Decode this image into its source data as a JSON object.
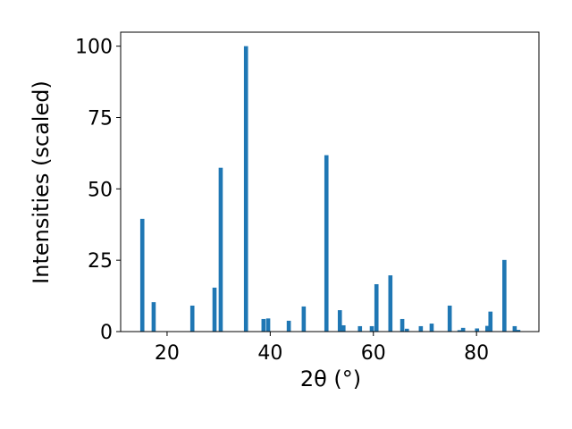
{
  "chart_data": {
    "type": "bar",
    "x_label": "2θ (°)",
    "y_label": "Intensities (scaled)",
    "x": [
      15.2,
      17.4,
      24.9,
      29.2,
      30.4,
      35.3,
      38.7,
      39.6,
      43.6,
      46.5,
      50.9,
      53.5,
      54.2,
      57.4,
      59.7,
      60.6,
      63.3,
      65.6,
      66.5,
      69.2,
      71.3,
      74.8,
      76.7,
      77.4,
      80.1,
      82.1,
      82.7,
      85.4,
      87.4,
      88.1
    ],
    "values": [
      39.5,
      10.3,
      9.1,
      15.4,
      57.4,
      100,
      4.4,
      4.6,
      3.8,
      8.8,
      61.8,
      7.5,
      2.2,
      1.9,
      1.9,
      16.6,
      19.7,
      4.4,
      1,
      1.9,
      2.8,
      9.1,
      0.5,
      1.3,
      1.1,
      2,
      7,
      25.1,
      1.9,
      0.6
    ],
    "color": "#1f77b4",
    "xlim": [
      11,
      92.1
    ],
    "ylim": [
      0,
      104.9
    ],
    "xticks": [
      20,
      40,
      60,
      80
    ],
    "yticks": [
      0,
      25,
      50,
      75,
      100
    ]
  }
}
